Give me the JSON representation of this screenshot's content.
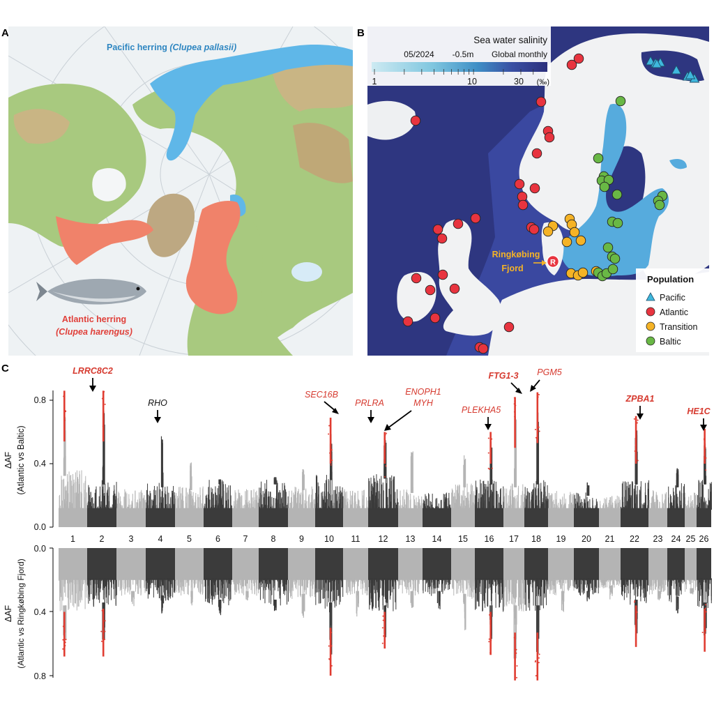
{
  "panels": {
    "a": {
      "letter": "A",
      "pacific_label": "Pacific herring ",
      "pacific_species": "(Clupea pallasii)",
      "atlantic_label": "Atlantic herring",
      "atlantic_species": "(Clupea harengus)",
      "colors": {
        "pacific": "#5fb7e8",
        "atlantic": "#f0826a",
        "land": "#9cc47a",
        "sea": "#eef3f5"
      }
    },
    "b": {
      "letter": "B",
      "colorbar": {
        "title": "Sea water salinity",
        "subtitle_date": "05/2024",
        "subtitle_depth": "-0.5m",
        "subtitle_scope": "Global monthly",
        "ticks": [
          "1",
          "10",
          "30"
        ],
        "unit": "(‰)"
      },
      "fjord_label_1": "Ringkøbing",
      "fjord_label_2": "Fjord",
      "fjord_marker": "R",
      "legend": {
        "title": "Population",
        "items": [
          {
            "label": "Pacific",
            "shape": "triangle",
            "color": "#3fb8dd"
          },
          {
            "label": "Atlantic",
            "shape": "circle",
            "color": "#e8343f"
          },
          {
            "label": "Transition",
            "shape": "circle",
            "color": "#f5b326"
          },
          {
            "label": "Baltic",
            "shape": "circle",
            "color": "#69b845"
          }
        ]
      },
      "sites": {
        "pacific": [
          [
            0.72,
            0.43
          ],
          [
            0.74,
            0.43
          ],
          [
            0.8,
            0.47
          ],
          [
            0.85,
            0.49
          ],
          [
            0.88,
            0.5
          ],
          [
            0.82,
            0.47
          ],
          [
            0.76,
            0.44
          ],
          [
            0.87,
            0.5
          ]
        ],
        "atlantic": [
          [
            0.43,
            0.24
          ],
          [
            0.5,
            0.2
          ],
          [
            0.45,
            0.28
          ],
          [
            0.31,
            0.35
          ],
          [
            0.28,
            0.5
          ],
          [
            0.52,
            0.52
          ],
          [
            0.53,
            0.55
          ],
          [
            0.48,
            0.61
          ],
          [
            0.5,
            0.66
          ],
          [
            0.47,
            0.7
          ],
          [
            0.47,
            0.73
          ],
          [
            0.49,
            0.75
          ],
          [
            0.3,
            0.82
          ],
          [
            0.23,
            0.82
          ],
          [
            0.25,
            0.86
          ],
          [
            0.26,
            0.9
          ],
          [
            0.33,
            0.86
          ],
          [
            0.31,
            0.93
          ],
          [
            0.25,
            0.95
          ],
          [
            0.22,
            1.0
          ],
          [
            0.18,
            1.01
          ],
          [
            0.36,
            1.04
          ],
          [
            0.4,
            1.11
          ],
          [
            0.41,
            1.12
          ],
          [
            0.51,
            0.88
          ],
          [
            0.5,
            0.9
          ]
        ],
        "transition": [
          [
            0.57,
            0.86
          ],
          [
            0.58,
            0.85
          ],
          [
            0.59,
            0.87
          ],
          [
            0.6,
            0.9
          ],
          [
            0.61,
            0.89
          ],
          [
            0.63,
            0.91
          ],
          [
            0.6,
            0.95
          ],
          [
            0.62,
            1.0
          ],
          [
            0.6,
            1.0
          ],
          [
            0.58,
            1.02
          ],
          [
            0.57,
            1.03
          ]
        ],
        "baltic": [
          [
            0.66,
            0.5
          ],
          [
            0.71,
            0.66
          ],
          [
            0.72,
            0.68
          ],
          [
            0.73,
            0.7
          ],
          [
            0.71,
            0.7
          ],
          [
            0.74,
            0.7
          ],
          [
            0.72,
            0.72
          ],
          [
            0.75,
            0.74
          ],
          [
            0.83,
            0.71
          ],
          [
            0.84,
            0.72
          ],
          [
            0.82,
            0.73
          ],
          [
            0.75,
            0.85
          ],
          [
            0.76,
            0.86
          ],
          [
            0.72,
            0.9
          ],
          [
            0.73,
            0.94
          ],
          [
            0.75,
            0.96
          ],
          [
            0.7,
            1.0
          ],
          [
            0.71,
            1.01
          ],
          [
            0.73,
            1.0
          ]
        ]
      },
      "colors": {
        "sea": "#2e3680",
        "land": "#f1f2f3",
        "baltic_low": "#6fbbe0"
      }
    },
    "c": {
      "letter": "C",
      "top_ylabel_1": "ΔAF",
      "top_ylabel_2": "(Atlantic vs Baltic)",
      "bottom_ylabel_1": "ΔAF",
      "bottom_ylabel_2": "(Atlantic vs Ringkøbing Fjord)",
      "genes": [
        {
          "label": "LRRC8C2",
          "bold": true,
          "color": "red",
          "chrom": 1
        },
        {
          "label": "RHO",
          "bold": false,
          "color": "black",
          "chrom": 4
        },
        {
          "label": "SEC16B",
          "bold": false,
          "color": "red",
          "chrom": 10
        },
        {
          "label": "PRLRA",
          "bold": false,
          "color": "red",
          "chrom": 12
        },
        {
          "label": "ENOPH1",
          "bold": false,
          "color": "red",
          "chrom": 12
        },
        {
          "label": "MYH",
          "bold": false,
          "color": "red",
          "chrom": 12
        },
        {
          "label": "PLEKHA5",
          "bold": false,
          "color": "red",
          "chrom": 16
        },
        {
          "label": "FTG1-3",
          "bold": true,
          "color": "red",
          "chrom": 17
        },
        {
          "label": "PGM5",
          "bold": false,
          "color": "red",
          "chrom": 18
        },
        {
          "label": "ZPBA1",
          "bold": true,
          "color": "red",
          "chrom": 22
        },
        {
          "label": "HE1C",
          "bold": true,
          "color": "red",
          "chrom": 26
        }
      ],
      "colors": {
        "light": "#b4b4b4",
        "dark": "#3b3b3b",
        "highlight": "#e03c31",
        "label_red": "#d63a2f"
      }
    }
  },
  "chart_data": [
    {
      "type": "scatter",
      "title": "",
      "xlabel": "",
      "ylabel": "ΔAF (Atlantic vs Baltic)",
      "ylim": [
        0,
        0.9
      ],
      "y_ticks": [
        "0.0",
        "0.4",
        "0.8"
      ],
      "categories": [
        "1",
        "2",
        "3",
        "4",
        "5",
        "6",
        "7",
        "8",
        "9",
        "10",
        "11",
        "12",
        "13",
        "14",
        "15",
        "16",
        "17",
        "18",
        "19",
        "20",
        "21",
        "22",
        "23",
        "24",
        "25",
        "26"
      ],
      "baseline_max": [
        0.36,
        0.3,
        0.24,
        0.28,
        0.26,
        0.3,
        0.24,
        0.3,
        0.26,
        0.33,
        0.24,
        0.34,
        0.24,
        0.22,
        0.28,
        0.3,
        0.28,
        0.3,
        0.24,
        0.22,
        0.2,
        0.3,
        0.24,
        0.28,
        0.22,
        0.3
      ],
      "peak_values": [
        0.86,
        0.86,
        0.0,
        0.65,
        0.45,
        0.3,
        0.0,
        0.32,
        0.4,
        0.69,
        0.0,
        0.62,
        0.55,
        0.0,
        0.5,
        0.6,
        0.82,
        0.85,
        0.0,
        0.3,
        0.0,
        0.7,
        0.0,
        0.4,
        0.0,
        0.62
      ],
      "highlighted_signals": [
        {
          "chrom": 1,
          "y": 0.86
        },
        {
          "chrom": 2,
          "y": 0.86
        },
        {
          "chrom": 10,
          "y": 0.69
        },
        {
          "chrom": 12,
          "y": 0.6
        },
        {
          "chrom": 16,
          "y": 0.6
        },
        {
          "chrom": 17,
          "y": 0.82
        },
        {
          "chrom": 18,
          "y": 0.85
        },
        {
          "chrom": 22,
          "y": 0.7
        },
        {
          "chrom": 26,
          "y": 0.62
        }
      ]
    },
    {
      "type": "scatter",
      "title": "",
      "xlabel": "",
      "ylabel": "ΔAF (Atlantic vs Ringkøbing Fjord)",
      "ylim": [
        0,
        0.85
      ],
      "inverted": true,
      "y_ticks": [
        "0.0",
        "0.4",
        "0.8"
      ],
      "categories": [
        "1",
        "2",
        "3",
        "4",
        "5",
        "6",
        "7",
        "8",
        "9",
        "10",
        "11",
        "12",
        "13",
        "14",
        "15",
        "16",
        "17",
        "18",
        "19",
        "20",
        "21",
        "22",
        "23",
        "24",
        "25",
        "26"
      ],
      "baseline_max": [
        0.4,
        0.38,
        0.3,
        0.33,
        0.3,
        0.36,
        0.3,
        0.36,
        0.32,
        0.38,
        0.3,
        0.4,
        0.3,
        0.3,
        0.32,
        0.4,
        0.4,
        0.4,
        0.3,
        0.3,
        0.26,
        0.36,
        0.3,
        0.34,
        0.28,
        0.38
      ],
      "peak_values": [
        0.68,
        0.68,
        0.4,
        0.45,
        0.4,
        0.45,
        0.35,
        0.42,
        0.5,
        0.8,
        0.5,
        0.63,
        0.42,
        0.42,
        0.6,
        0.67,
        0.83,
        0.83,
        0.45,
        0.35,
        0.35,
        0.62,
        0.35,
        0.45,
        0.3,
        0.65
      ],
      "highlighted_signals": [
        {
          "chrom": 1,
          "y": 0.68
        },
        {
          "chrom": 2,
          "y": 0.68
        },
        {
          "chrom": 10,
          "y": 0.8
        },
        {
          "chrom": 12,
          "y": 0.63
        },
        {
          "chrom": 16,
          "y": 0.67
        },
        {
          "chrom": 17,
          "y": 0.83
        },
        {
          "chrom": 18,
          "y": 0.83
        },
        {
          "chrom": 22,
          "y": 0.62
        },
        {
          "chrom": 26,
          "y": 0.65
        }
      ]
    }
  ]
}
